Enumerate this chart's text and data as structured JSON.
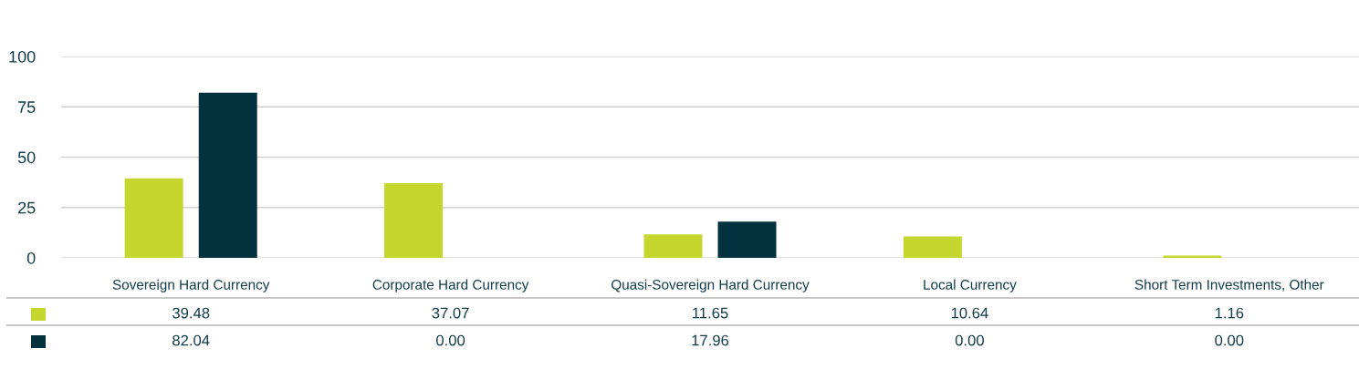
{
  "chart_data": {
    "type": "bar",
    "categories": [
      "Sovereign Hard Currency",
      "Corporate Hard Currency",
      "Quasi-Sovereign Hard Currency",
      "Local Currency",
      "Short Term Investments, Other"
    ],
    "series": [
      {
        "color": "#c5d62f",
        "values": [
          39.48,
          37.07,
          11.65,
          10.64,
          1.16
        ],
        "value_labels": [
          "39.48",
          "37.07",
          "11.65",
          "10.64",
          "1.16"
        ]
      },
      {
        "color": "#03323f",
        "values": [
          82.04,
          0,
          17.96,
          0,
          0
        ],
        "value_labels": [
          "82.04",
          "0.00",
          "17.96",
          "0.00",
          "0.00"
        ]
      }
    ],
    "ylim": [
      0,
      100
    ],
    "yticks": [
      0,
      25,
      50,
      75,
      100
    ],
    "grid": "y"
  }
}
